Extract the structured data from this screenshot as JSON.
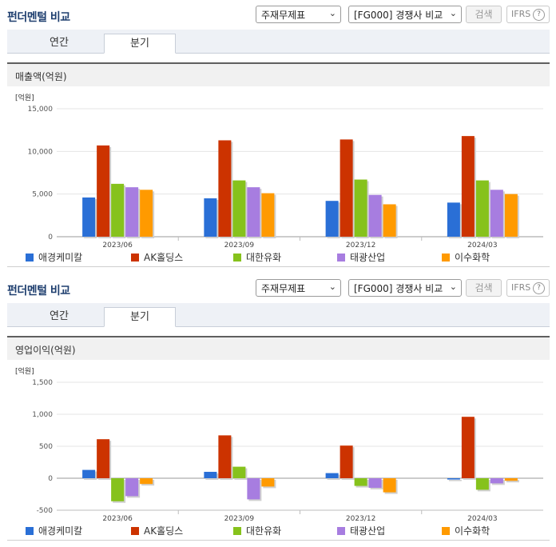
{
  "panels": [
    {
      "header": {
        "title": "펀더멘털 비교",
        "statement_select": "주재무제표",
        "group_select": "[FG000] 경쟁사 비교",
        "search_label": "검색",
        "ifrs_label": "IFRS",
        "help_label": "?"
      },
      "tabs": [
        {
          "label": "연간"
        },
        {
          "label": "분기"
        }
      ],
      "active_tab": "분기",
      "section_title": "매출액(억원)"
    },
    {
      "header": {
        "title": "펀더멘털 비교",
        "statement_select": "주재무제표",
        "group_select": "[FG000] 경쟁사 비교",
        "search_label": "검색",
        "ifrs_label": "IFRS",
        "help_label": "?"
      },
      "tabs": [
        {
          "label": "연간"
        },
        {
          "label": "분기"
        }
      ],
      "active_tab": "분기",
      "section_title": "영업이익(억원)"
    }
  ],
  "legend": [
    {
      "name": "애경케미칼",
      "color": "#2a6fd6"
    },
    {
      "name": "AK홀딩스",
      "color": "#cc3300"
    },
    {
      "name": "대한유화",
      "color": "#86c21c"
    },
    {
      "name": "태광산업",
      "color": "#a77de0"
    },
    {
      "name": "이수화학",
      "color": "#ff9a00"
    }
  ],
  "chart_data": [
    {
      "type": "bar",
      "unit_label": "[억원]",
      "categories": [
        "2023/06",
        "2023/09",
        "2023/12",
        "2024/03"
      ],
      "yticks": [
        "15,000",
        "10,000",
        "5,000",
        "0"
      ],
      "ytick_values": [
        15000,
        10000,
        5000,
        0
      ],
      "ylim": [
        0,
        15000
      ],
      "grid": true,
      "series": [
        {
          "name": "애경케미칼",
          "values": [
            4600,
            4500,
            4200,
            4000
          ]
        },
        {
          "name": "AK홀딩스",
          "values": [
            10700,
            11300,
            11400,
            11800
          ]
        },
        {
          "name": "대한유화",
          "values": [
            6200,
            6600,
            6700,
            6600
          ]
        },
        {
          "name": "태광산업",
          "values": [
            5800,
            5800,
            4900,
            5500
          ]
        },
        {
          "name": "이수화학",
          "values": [
            5500,
            5100,
            3800,
            5000
          ]
        }
      ]
    },
    {
      "type": "bar",
      "unit_label": "[억원]",
      "categories": [
        "2023/06",
        "2023/09",
        "2023/12",
        "2024/03"
      ],
      "yticks": [
        "1,500",
        "1,000",
        "500",
        "0",
        "-500"
      ],
      "ytick_values": [
        1500,
        1000,
        500,
        0,
        -500
      ],
      "ylim": [
        -500,
        1500
      ],
      "grid": true,
      "series": [
        {
          "name": "애경케미칼",
          "values": [
            130,
            100,
            80,
            -20
          ]
        },
        {
          "name": "AK홀딩스",
          "values": [
            610,
            670,
            510,
            960
          ]
        },
        {
          "name": "대한유화",
          "values": [
            -360,
            180,
            -120,
            -180
          ]
        },
        {
          "name": "태광산업",
          "values": [
            -280,
            -330,
            -150,
            -80
          ]
        },
        {
          "name": "이수화학",
          "values": [
            -90,
            -130,
            -220,
            -40
          ]
        }
      ]
    }
  ]
}
